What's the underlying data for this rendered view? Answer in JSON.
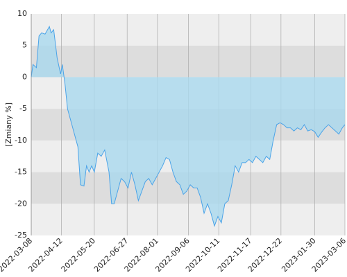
{
  "chart_data": {
    "type": "area",
    "y_label": "[Zmiany %]",
    "xlim": [
      "2022-03-08",
      "2023-03-06"
    ],
    "xticks": [
      "2022-03-08",
      "2022-04-12",
      "2022-05-20",
      "2022-06-27",
      "2022-08-01",
      "2022-09-06",
      "2022-10-11",
      "2022-11-17",
      "2022-12-22",
      "2023-01-30",
      "2023-03-06"
    ],
    "ylim": [
      -25,
      10
    ],
    "yticks": [
      -25,
      -20,
      -15,
      -10,
      -5,
      0,
      5,
      10
    ],
    "band_colors": [
      "#eeeeee",
      "#dddddd"
    ],
    "grid_color": "#aaaaaa",
    "series": [
      {
        "color": "#4aa3e8",
        "fill": "#a9d8ee",
        "x": [
          "2022-03-08",
          "2022-03-10",
          "2022-03-14",
          "2022-03-17",
          "2022-03-20",
          "2022-03-24",
          "2022-03-29",
          "2022-03-31",
          "2022-04-03",
          "2022-04-07",
          "2022-04-11",
          "2022-04-13",
          "2022-04-16",
          "2022-04-19",
          "2022-04-23",
          "2022-04-27",
          "2022-05-01",
          "2022-05-04",
          "2022-05-08",
          "2022-05-11",
          "2022-05-14",
          "2022-05-17",
          "2022-05-20",
          "2022-05-24",
          "2022-05-28",
          "2022-06-01",
          "2022-06-06",
          "2022-06-09",
          "2022-06-12",
          "2022-06-16",
          "2022-06-20",
          "2022-06-24",
          "2022-06-28",
          "2022-07-02",
          "2022-07-06",
          "2022-07-10",
          "2022-07-14",
          "2022-07-18",
          "2022-07-22",
          "2022-07-26",
          "2022-07-30",
          "2022-08-03",
          "2022-08-07",
          "2022-08-11",
          "2022-08-15",
          "2022-08-19",
          "2022-08-23",
          "2022-08-27",
          "2022-08-31",
          "2022-09-04",
          "2022-09-08",
          "2022-09-12",
          "2022-09-16",
          "2022-09-20",
          "2022-09-24",
          "2022-09-28",
          "2022-10-02",
          "2022-10-06",
          "2022-10-10",
          "2022-10-14",
          "2022-10-18",
          "2022-10-22",
          "2022-10-26",
          "2022-10-30",
          "2022-11-03",
          "2022-11-07",
          "2022-11-11",
          "2022-11-15",
          "2022-11-19",
          "2022-11-23",
          "2022-11-27",
          "2022-12-01",
          "2022-12-05",
          "2022-12-09",
          "2022-12-13",
          "2022-12-17",
          "2022-12-21",
          "2022-12-25",
          "2022-12-29",
          "2023-01-02",
          "2023-01-06",
          "2023-01-10",
          "2023-01-14",
          "2023-01-18",
          "2023-01-22",
          "2023-01-26",
          "2023-01-30",
          "2023-02-03",
          "2023-02-07",
          "2023-02-11",
          "2023-02-15",
          "2023-02-19",
          "2023-02-23",
          "2023-02-27",
          "2023-03-03",
          "2023-03-06"
        ],
        "values": [
          0,
          2,
          1.5,
          6.5,
          7,
          6.8,
          8,
          7,
          7.5,
          3,
          0.5,
          2,
          -1,
          -5,
          -7,
          -9,
          -11,
          -17,
          -17.2,
          -14,
          -15,
          -14,
          -15,
          -12,
          -12.5,
          -11.5,
          -15,
          -20,
          -20,
          -18,
          -16,
          -16.5,
          -17.5,
          -15,
          -17,
          -19.5,
          -18,
          -16.5,
          -16,
          -17,
          -16,
          -15,
          -14,
          -12.7,
          -13,
          -15,
          -16.5,
          -17,
          -18.5,
          -18,
          -17,
          -17.5,
          -17.5,
          -19,
          -21.5,
          -20,
          -21.5,
          -23.5,
          -22,
          -23,
          -20,
          -19.5,
          -17,
          -14,
          -15,
          -13.5,
          -13.5,
          -13,
          -13.5,
          -12.5,
          -13,
          -13.5,
          -12.5,
          -13,
          -10,
          -7.5,
          -7.2,
          -7.5,
          -8,
          -8,
          -8.5,
          -8,
          -8.3,
          -7.5,
          -8.5,
          -8.3,
          -8.6,
          -9.5,
          -8.7,
          -8,
          -7.5,
          -8,
          -8.5,
          -9,
          -8,
          -7.5
        ]
      }
    ]
  }
}
